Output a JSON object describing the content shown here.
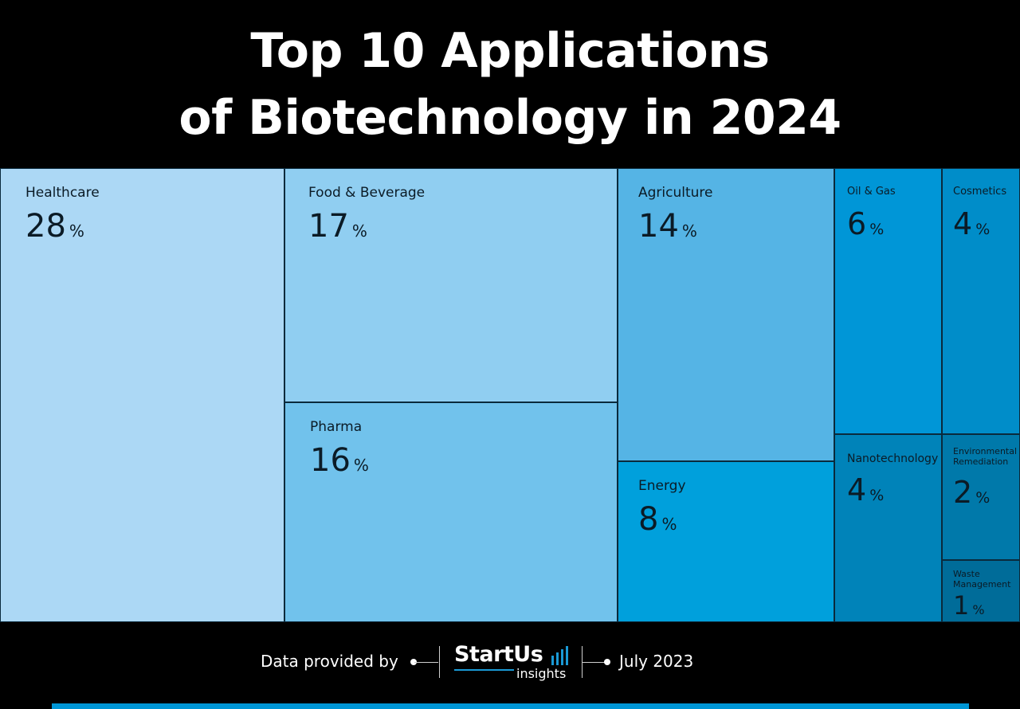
{
  "title": {
    "line1": "Top 10 Applications",
    "line2": "of Biotechnology in 2024"
  },
  "chart_data": {
    "type": "treemap",
    "title": "Top 10 Applications of Biotechnology in 2024",
    "unit": "%",
    "items": [
      {
        "name": "Healthcare",
        "value": 28,
        "color": "#acd8f5"
      },
      {
        "name": "Food & Beverage",
        "value": 17,
        "color": "#90cef1"
      },
      {
        "name": "Pharma",
        "value": 16,
        "color": "#71c2ec"
      },
      {
        "name": "Agriculture",
        "value": 14,
        "color": "#55b4e5"
      },
      {
        "name": "Energy",
        "value": 8,
        "color": "#00a0dc"
      },
      {
        "name": "Oil & Gas",
        "value": 6,
        "color": "#0096d7"
      },
      {
        "name": "Cosmetics",
        "value": 4,
        "color": "#008dc9"
      },
      {
        "name": "Nanotechnology",
        "value": 4,
        "color": "#0083b9"
      },
      {
        "name": "Environmental Remediation",
        "value": 2,
        "color": "#0079aa"
      },
      {
        "name": "Waste Management",
        "value": 1,
        "color": "#006c99"
      }
    ]
  },
  "footer": {
    "provided_by": "Data provided by",
    "logo_name": "StartUs",
    "logo_sub": "insights",
    "date": "July 2023",
    "accent_color": "#0096d6"
  }
}
